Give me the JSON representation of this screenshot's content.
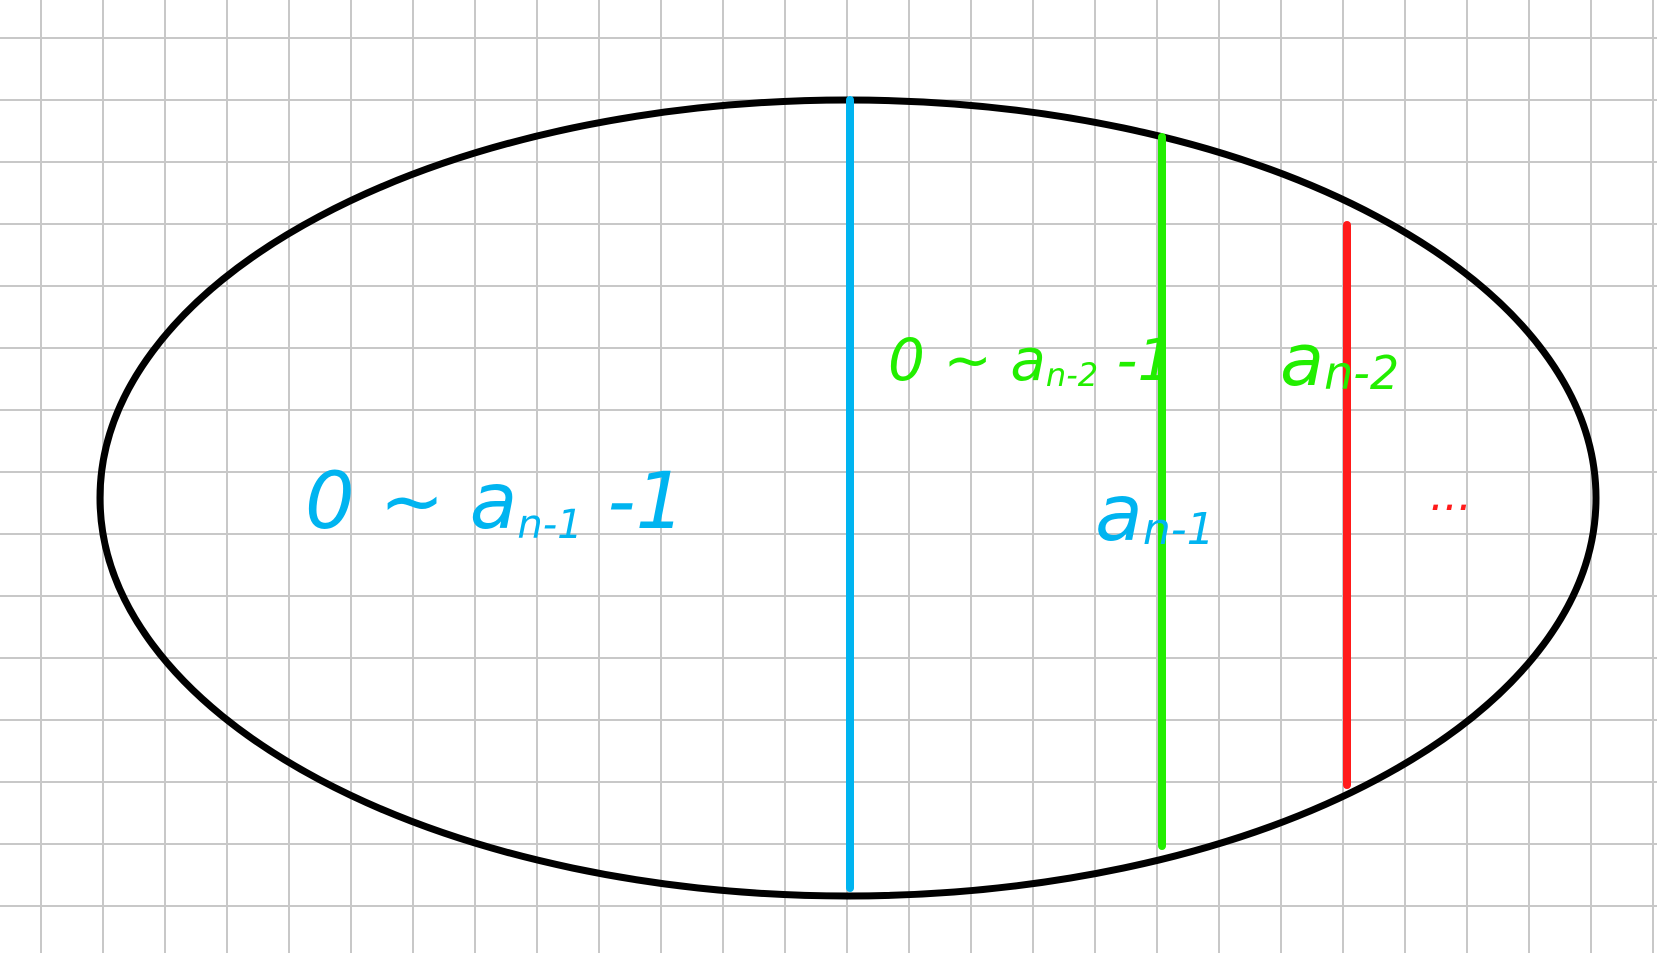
{
  "colors": {
    "background": "#ffffff",
    "grid": "#c8c8c8",
    "ellipse": "#000000",
    "blue": "#00b4f0",
    "green": "#22ee00",
    "red": "#ff1a1a"
  },
  "labels": {
    "left_region": "0 ~ a",
    "left_region_sub": "n-1",
    "left_region_tail": " -1",
    "green_range": "0 ~ a",
    "green_range_sub": "n-2",
    "green_range_tail": " -1",
    "a_n1": "a",
    "a_n1_sub": "n-1",
    "a_n2": "a",
    "a_n2_sub": "n-2",
    "ellipsis": "..."
  }
}
